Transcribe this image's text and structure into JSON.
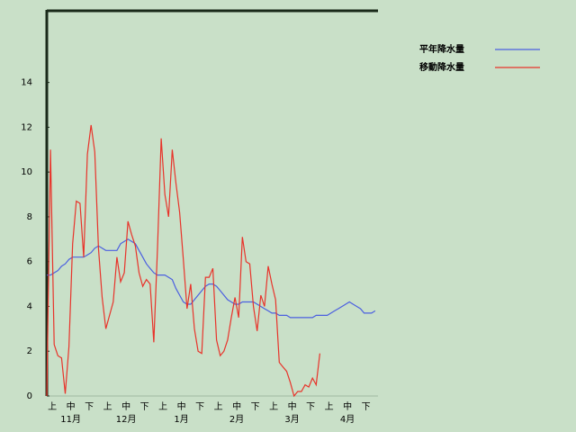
{
  "chart_data": {
    "type": "line",
    "categories": [
      null,
      "上",
      null,
      null,
      null,
      null,
      "中",
      null,
      null,
      null,
      null,
      "下",
      null,
      null,
      null,
      null,
      "上",
      null,
      null,
      null,
      null,
      "中",
      null,
      null,
      null,
      null,
      "下",
      null,
      null,
      null,
      null,
      "上",
      null,
      null,
      null,
      null,
      "中",
      null,
      null,
      null,
      null,
      "下",
      null,
      null,
      null,
      null,
      "上",
      null,
      null,
      null,
      null,
      "中",
      null,
      null,
      null,
      null,
      "下",
      null,
      null,
      null,
      null,
      "上",
      null,
      null,
      null,
      null,
      "中",
      null,
      null,
      null,
      null,
      "下",
      null,
      null,
      null,
      null,
      "上",
      null,
      null,
      null,
      null,
      "中",
      null,
      null,
      null,
      null,
      "下",
      null,
      null,
      null
    ],
    "month_labels": [
      "11月",
      "12月",
      "1月",
      "2月",
      "3月",
      "4月"
    ],
    "series": [
      {
        "name": "平年降水量",
        "color": "#4b5fe0",
        "values": [
          5.4,
          5.4,
          5.5,
          5.6,
          5.8,
          5.9,
          6.1,
          6.2,
          6.2,
          6.2,
          6.2,
          6.3,
          6.4,
          6.6,
          6.7,
          6.6,
          6.5,
          6.5,
          6.5,
          6.5,
          6.8,
          6.9,
          7.0,
          6.9,
          6.8,
          6.5,
          6.2,
          5.9,
          5.7,
          5.5,
          5.4,
          5.4,
          5.4,
          5.3,
          5.2,
          4.8,
          4.5,
          4.2,
          4.1,
          4.1,
          4.3,
          4.5,
          4.7,
          4.9,
          5.0,
          5.0,
          4.9,
          4.7,
          4.5,
          4.3,
          4.2,
          4.1,
          4.1,
          4.2,
          4.2,
          4.2,
          4.2,
          4.1,
          4.0,
          3.9,
          3.8,
          3.7,
          3.7,
          3.6,
          3.6,
          3.6,
          3.5,
          3.5,
          3.5,
          3.5,
          3.5,
          3.5,
          3.5,
          3.6,
          3.6,
          3.6,
          3.6,
          3.7,
          3.8,
          3.9,
          4.0,
          4.1,
          4.2,
          4.1,
          4.0,
          3.9,
          3.7,
          3.7,
          3.7,
          3.8
        ]
      },
      {
        "name": "移動降水量",
        "color": "#e8332a",
        "values": [
          0,
          11.0,
          2.3,
          1.8,
          1.7,
          0.1,
          2.2,
          6.8,
          8.7,
          8.6,
          6.2,
          10.8,
          12.1,
          10.9,
          6.6,
          4.4,
          3.0,
          3.6,
          4.2,
          6.2,
          5.1,
          5.5,
          7.8,
          7.2,
          6.7,
          5.5,
          4.9,
          5.2,
          5.0,
          2.4,
          6.6,
          11.5,
          9.0,
          8.0,
          11.0,
          9.5,
          8.2,
          6.1,
          3.9,
          5.0,
          3.0,
          2.0,
          1.9,
          5.3,
          5.3,
          5.7,
          2.5,
          1.8,
          2.0,
          2.5,
          3.5,
          4.4,
          3.5,
          7.1,
          6.0,
          5.9,
          4.0,
          2.9,
          4.5,
          4.0,
          5.8,
          5.0,
          4.3,
          1.5,
          1.3,
          1.1,
          0.6,
          0.0,
          0.2,
          0.2,
          0.5,
          0.4,
          0.8,
          0.5,
          1.9,
          null,
          null,
          null,
          null,
          null,
          null,
          null,
          null,
          null,
          null,
          null,
          null,
          null,
          null,
          null
        ]
      }
    ],
    "ylim": [
      0,
      17.2
    ],
    "yticks": [
      0,
      2,
      4,
      6,
      8,
      10,
      12,
      14
    ],
    "legend": "top-right"
  }
}
